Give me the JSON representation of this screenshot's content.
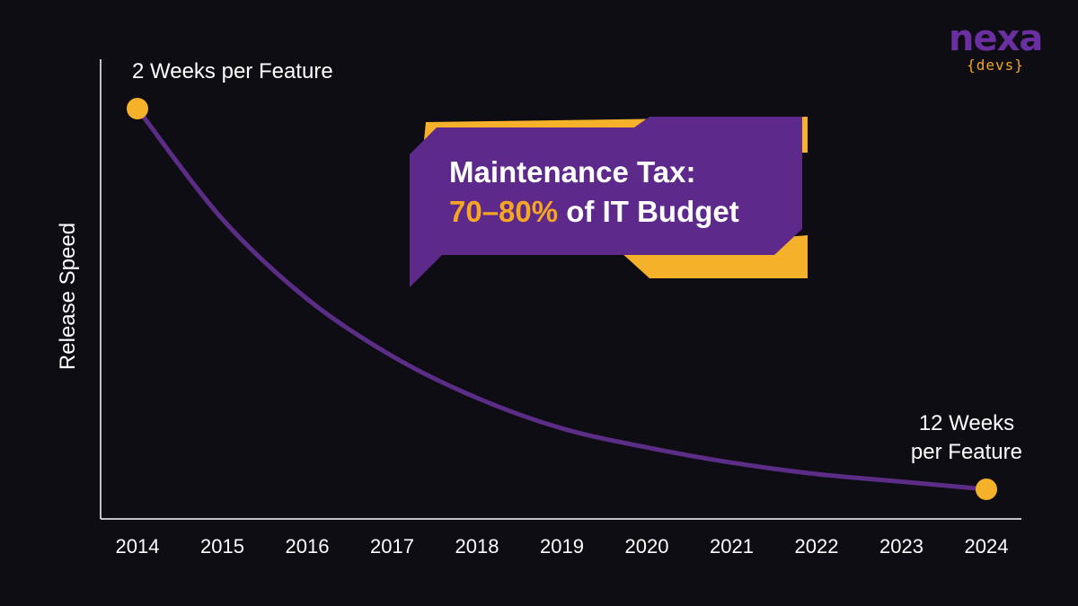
{
  "logo": {
    "word": "nexa",
    "sub": "{devs}"
  },
  "colors": {
    "background": "#0d0d13",
    "line": "#5b2d86",
    "marker": "#f5b12a",
    "callout_fill": "#5d2a8c",
    "callout_accent": "#f5b12a",
    "axis": "#ffffff"
  },
  "chart_data": {
    "type": "line",
    "title": "",
    "xlabel": "",
    "ylabel": "Release Speed",
    "categories": [
      "2014",
      "2015",
      "2016",
      "2017",
      "2018",
      "2019",
      "2020",
      "2021",
      "2022",
      "2023",
      "2024"
    ],
    "series": [
      {
        "values": [
          2,
          4.9,
          7.0,
          8.5,
          9.6,
          10.4,
          10.9,
          11.3,
          11.6,
          11.8,
          12
        ]
      }
    ],
    "y_unit": "weeks per feature",
    "y_direction": "higher weeks drawn lower (slower release)",
    "grid": false,
    "start_annotation": "2 Weeks per Feature",
    "end_annotation": [
      "12 Weeks",
      "per Feature"
    ],
    "callout": {
      "line1": "Maintenance Tax:",
      "highlight": "70–80%",
      "rest": " of IT Budget"
    }
  }
}
